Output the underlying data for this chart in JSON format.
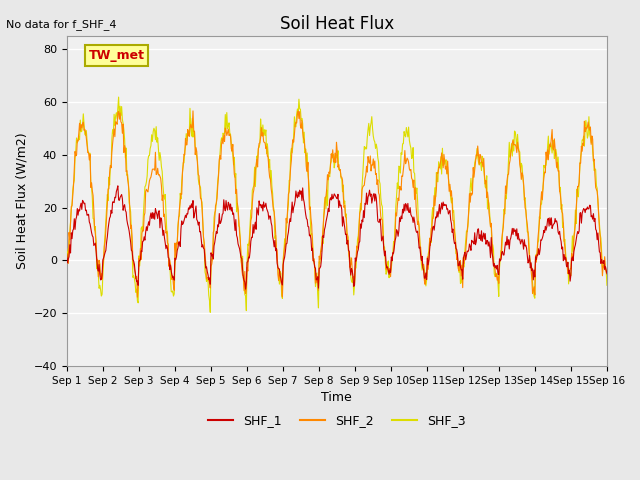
{
  "title": "Soil Heat Flux",
  "subtitle": "No data for f_SHF_4",
  "ylabel": "Soil Heat Flux (W/m2)",
  "xlabel": "Time",
  "ylim": [
    -40,
    85
  ],
  "yticks": [
    -40,
    -20,
    0,
    20,
    40,
    60,
    80
  ],
  "bg_color": "#e8e8e8",
  "plot_bg_color": "#f0f0f0",
  "line_colors": {
    "SHF_1": "#cc0000",
    "SHF_2": "#ff8800",
    "SHF_3": "#dddd00"
  },
  "legend_labels": [
    "SHF_1",
    "SHF_2",
    "SHF_3"
  ],
  "tw_met_label": "TW_met",
  "days": 15,
  "start_day": 1,
  "points_per_day": 48
}
